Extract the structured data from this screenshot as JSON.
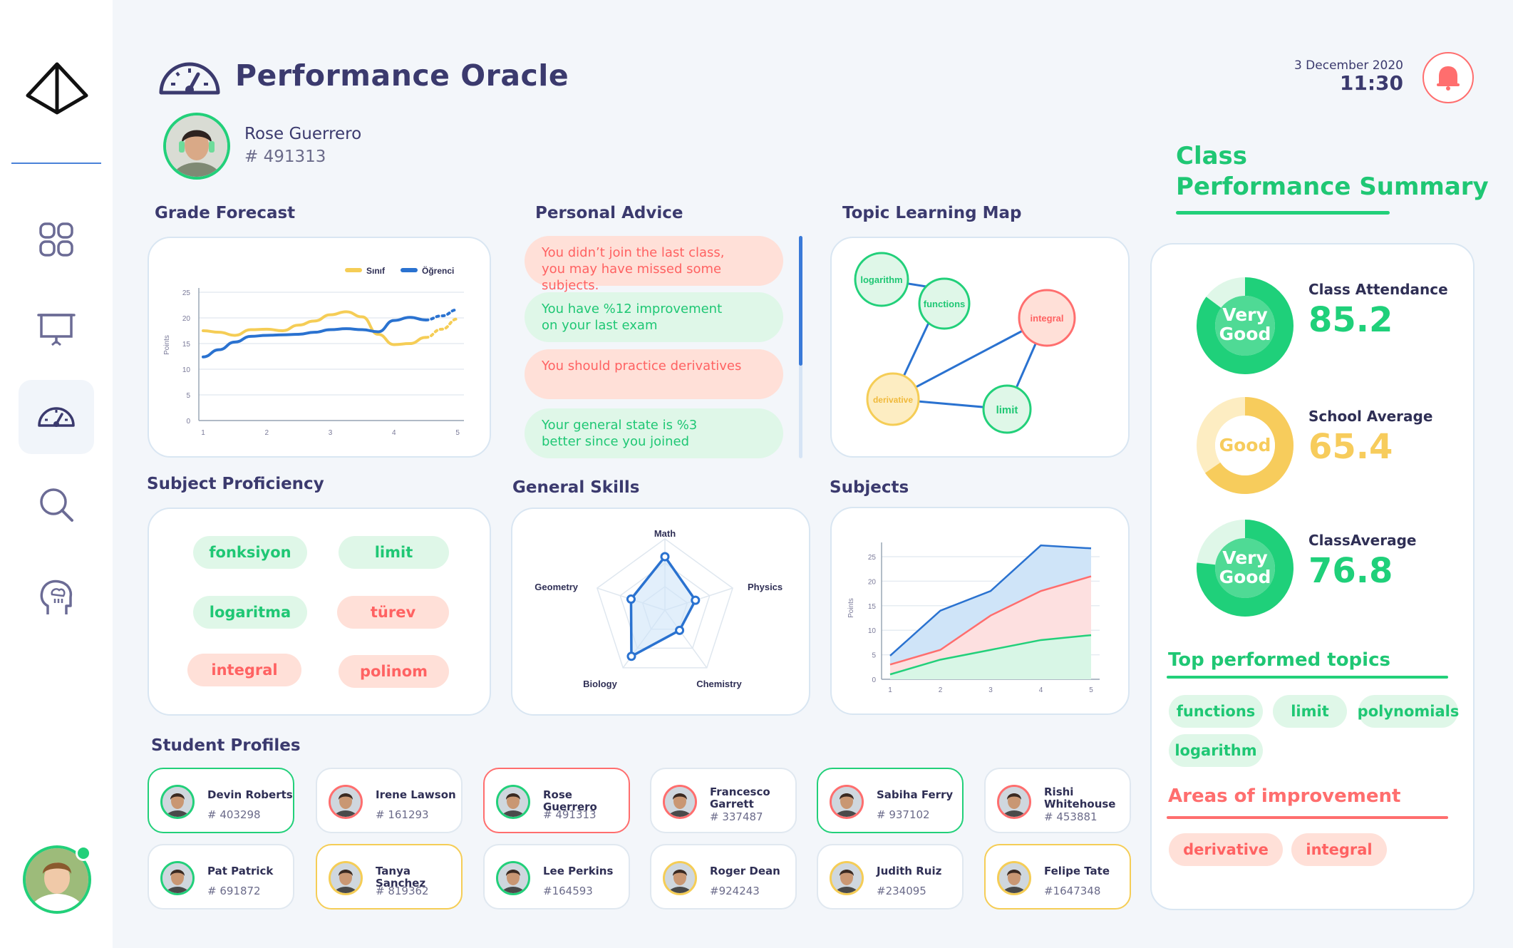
{
  "header": {
    "title": "Performance Oracle",
    "date": "3 December 2020",
    "time": "11:30"
  },
  "student": {
    "name": "Rose Guerrero",
    "id": "# 491313"
  },
  "nav": [
    "logo-icon",
    "dashboard-icon",
    "presentation-icon",
    "gauge-icon",
    "search-icon",
    "brain-icon"
  ],
  "grade_forecast": {
    "title": "Grade Forecast",
    "legend": [
      "Sınıf",
      "Öğrenci"
    ],
    "colors": [
      "#f5cd56",
      "#2a72d0"
    ],
    "ylabel": "Points"
  },
  "personal_advice": {
    "title": "Personal Advice",
    "items": [
      {
        "line1": "You didn’t join the last class,",
        "line2": "you may have missed some subjects.",
        "tone": "red"
      },
      {
        "line1": "You have %12 improvement",
        "line2": "on your last exam",
        "tone": "green"
      },
      {
        "line1": "You should practice derivatives",
        "line2": "",
        "tone": "red"
      },
      {
        "line1": "Your general state is %3",
        "line2": "better since you joined",
        "tone": "green"
      }
    ]
  },
  "topic_map": {
    "title": "Topic Learning Map",
    "nodes": [
      "logarithm",
      "functions",
      "integral",
      "derivative",
      "limit"
    ]
  },
  "subject_proficiency": {
    "title": "Subject Proficiency",
    "pills": [
      "fonksiyon",
      "limit",
      "logaritma",
      "türev",
      "integral",
      "polinom"
    ]
  },
  "general_skills": {
    "title": "General Skills",
    "axes": [
      "Math",
      "Physics",
      "Chemistry",
      "Biology",
      "Geometry"
    ]
  },
  "subjects": {
    "title": "Subjects",
    "ylabel": "Points"
  },
  "chart_data": [
    {
      "type": "line",
      "title": "Grade Forecast",
      "ylabel": "Points",
      "x": [
        1,
        2,
        3,
        4,
        5
      ],
      "ylim": [
        0,
        25
      ],
      "yticks": [
        0,
        5,
        10,
        15,
        20,
        25
      ],
      "legend_position": "top-right",
      "series": [
        {
          "name": "Sınıf",
          "color": "#f5cd56",
          "x": [
            1,
            1.25,
            1.5,
            1.75,
            2,
            2.25,
            2.5,
            2.75,
            3,
            3.25,
            3.5,
            3.75,
            4,
            4.25,
            4.5
          ],
          "values": [
            17.5,
            17.2,
            16.6,
            17.7,
            17.8,
            17.5,
            18.6,
            19.4,
            20.6,
            21.2,
            20.2,
            16.8,
            14.8,
            15.0,
            16.2
          ],
          "forecast": {
            "x": [
              4.5,
              4.75,
              5
            ],
            "values": [
              16.2,
              17.8,
              19.8
            ]
          }
        },
        {
          "name": "Öğrenci",
          "color": "#2a72d0",
          "x": [
            1,
            1.25,
            1.5,
            1.75,
            2,
            2.25,
            2.5,
            2.75,
            3,
            3.25,
            3.5,
            3.75,
            4,
            4.25,
            4.5
          ],
          "values": [
            12.4,
            13.8,
            15.3,
            16.4,
            16.6,
            16.7,
            16.8,
            17.2,
            17.7,
            17.9,
            17.7,
            17.3,
            19.5,
            20.1,
            19.6
          ],
          "forecast": {
            "x": [
              4.5,
              4.75,
              5
            ],
            "values": [
              19.6,
              20.4,
              21.6
            ]
          }
        }
      ]
    },
    {
      "type": "radar",
      "title": "General Skills",
      "axes": [
        "Math",
        "Physics",
        "Chemistry",
        "Biology",
        "Geometry"
      ],
      "values": [
        0.75,
        0.45,
        0.35,
        0.8,
        0.5
      ],
      "max": 1,
      "color": "#2a72d0"
    },
    {
      "type": "area",
      "title": "Subjects",
      "ylabel": "Points",
      "x": [
        1,
        2,
        3,
        4,
        5
      ],
      "ylim": [
        0,
        25
      ],
      "yticks": [
        0,
        5,
        10,
        15,
        20,
        25
      ],
      "series": [
        {
          "color": "#2a72d0",
          "fill": "#cfe4f8",
          "values": [
            4.8,
            14.0,
            18.0,
            27.3,
            26.7
          ]
        },
        {
          "color": "#ff6e6e",
          "fill": "#fde0e0",
          "values": [
            3.0,
            6.0,
            13.0,
            18.0,
            21.0
          ]
        },
        {
          "color": "#22d07a",
          "fill": "#d8f6e6",
          "values": [
            1.0,
            4.0,
            6.0,
            8.0,
            9.0
          ]
        }
      ]
    },
    {
      "type": "pie",
      "title": "Class Attendance",
      "value": 85.2,
      "label": "Very\nGood",
      "color": "#1fd07a",
      "track": "#dff7e8"
    },
    {
      "type": "pie",
      "title": "School Average",
      "value": 65.4,
      "label": "Good",
      "color": "#f7cc5c",
      "track": "#fdedc2"
    },
    {
      "type": "pie",
      "title": "ClassAverage",
      "value": 76.8,
      "label": "Very\nGood",
      "color": "#1fd07a",
      "track": "#dff7e8"
    }
  ],
  "summary": {
    "title_line1": "Class",
    "title_line2": "Performance Summary",
    "metrics": [
      {
        "label": "Class Attendance",
        "value": "85.2",
        "ring_line1": "Very",
        "ring_line2": "Good",
        "color": "#1fd07a"
      },
      {
        "label": "School Average",
        "value": "65.4",
        "ring_line1": "Good",
        "ring_line2": "",
        "color": "#f7cc5c"
      },
      {
        "label": "ClassAverage",
        "value": "76.8",
        "ring_line1": "Very",
        "ring_line2": "Good",
        "color": "#1fd07a"
      }
    ],
    "top_title": "Top performed topics",
    "top_topics": [
      "functions",
      "limit",
      "polynomials",
      "logarithm"
    ],
    "improve_title": "Areas of improvement",
    "improve_topics": [
      "derivative",
      "integral"
    ]
  },
  "student_profiles": {
    "title": "Student Profiles",
    "items": [
      {
        "name": "Devin Roberts",
        "id": "# 403298",
        "border": "green",
        "avatar": "green"
      },
      {
        "name": "Irene Lawson",
        "id": "# 161293",
        "border": "none",
        "avatar": "red"
      },
      {
        "name": "Rose Guerrero",
        "id": "# 491313",
        "border": "red",
        "avatar": "green"
      },
      {
        "name": "Francesco Garrett",
        "id": "# 337487",
        "border": "none",
        "avatar": "red"
      },
      {
        "name": "Sabiha Ferry",
        "id": "# 937102",
        "border": "green",
        "avatar": "red"
      },
      {
        "name": "Rishi Whitehouse",
        "id": "# 453881",
        "border": "none",
        "avatar": "red"
      },
      {
        "name": "Pat Patrick",
        "id": "# 691872",
        "border": "none",
        "avatar": "green"
      },
      {
        "name": "Tanya Sanchez",
        "id": "# 819362",
        "border": "yellow",
        "avatar": "yellow"
      },
      {
        "name": "Lee Perkins",
        "id": "#164593",
        "border": "none",
        "avatar": "green"
      },
      {
        "name": "Roger Dean",
        "id": "#924243",
        "border": "none",
        "avatar": "yellow"
      },
      {
        "name": "Judith Ruiz",
        "id": "#234095",
        "border": "none",
        "avatar": "yellow"
      },
      {
        "name": "Felipe Tate",
        "id": "#1647348",
        "border": "yellow",
        "avatar": "yellow"
      }
    ]
  }
}
